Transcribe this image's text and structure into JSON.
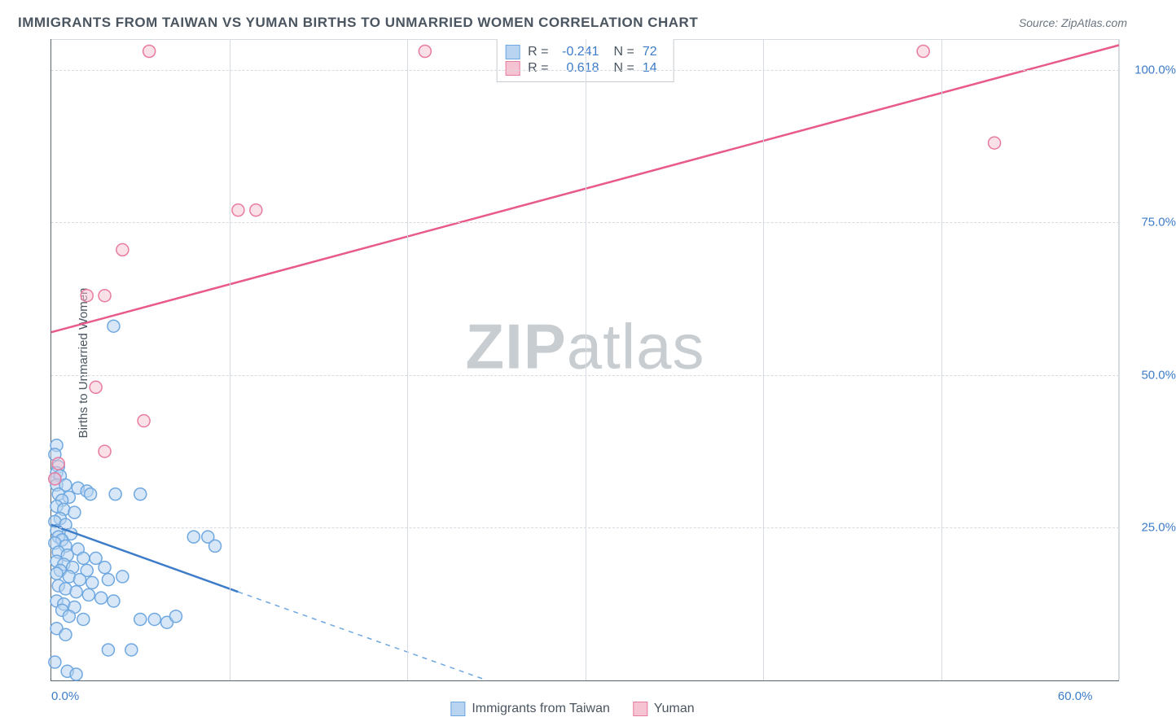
{
  "title": "IMMIGRANTS FROM TAIWAN VS YUMAN BIRTHS TO UNMARRIED WOMEN CORRELATION CHART",
  "source": "Source: ZipAtlas.com",
  "ylabel": "Births to Unmarried Women",
  "watermark_a": "ZIP",
  "watermark_b": "atlas",
  "chart": {
    "type": "scatter",
    "xlim": [
      0,
      60
    ],
    "ylim": [
      0,
      105
    ],
    "x_ticks": [
      0,
      10,
      20,
      30,
      40,
      50,
      60
    ],
    "x_tick_labels": [
      "0.0%",
      "",
      "",
      "",
      "",
      "",
      "60.0%"
    ],
    "y_ticks": [
      25,
      50,
      75,
      100
    ],
    "y_tick_labels": [
      "25.0%",
      "50.0%",
      "75.0%",
      "100.0%"
    ],
    "grid_color": "#d5dbe0",
    "axis_color": "#5a6570",
    "background_color": "#ffffff",
    "label_color": "#3d7cc9",
    "series": [
      {
        "name": "Immigrants from Taiwan",
        "key": "taiwan",
        "marker_fill": "#b8d4f0",
        "marker_stroke": "#6fa8e0",
        "marker_fill_opacity": 0.55,
        "line_color": "#3d7cc9",
        "line_width": 2.5,
        "dash_color": "#6fa8e0",
        "r": -0.241,
        "n": 72,
        "trend_solid": [
          [
            0,
            25.5
          ],
          [
            10.5,
            14.5
          ]
        ],
        "trend_dash": [
          [
            10.5,
            14.5
          ],
          [
            24.5,
            0
          ]
        ],
        "points": [
          [
            0.3,
            38.5
          ],
          [
            0.2,
            37.0
          ],
          [
            0.4,
            35.0
          ],
          [
            0.3,
            34.0
          ],
          [
            0.2,
            33.0
          ],
          [
            0.5,
            33.5
          ],
          [
            0.3,
            32.0
          ],
          [
            0.8,
            32.0
          ],
          [
            1.5,
            31.5
          ],
          [
            2.0,
            31.0
          ],
          [
            0.4,
            30.5
          ],
          [
            1.0,
            30.0
          ],
          [
            0.6,
            29.5
          ],
          [
            2.2,
            30.5
          ],
          [
            3.6,
            30.5
          ],
          [
            5.0,
            30.5
          ],
          [
            0.3,
            28.5
          ],
          [
            0.7,
            28.0
          ],
          [
            1.3,
            27.5
          ],
          [
            0.5,
            26.5
          ],
          [
            0.2,
            26.0
          ],
          [
            0.8,
            25.5
          ],
          [
            0.3,
            24.5
          ],
          [
            1.1,
            24.0
          ],
          [
            0.4,
            23.5
          ],
          [
            0.6,
            23.0
          ],
          [
            8.0,
            23.5
          ],
          [
            8.8,
            23.5
          ],
          [
            9.2,
            22.0
          ],
          [
            0.2,
            22.5
          ],
          [
            0.8,
            22.0
          ],
          [
            1.5,
            21.5
          ],
          [
            0.4,
            21.0
          ],
          [
            0.9,
            20.5
          ],
          [
            1.8,
            20.0
          ],
          [
            2.5,
            20.0
          ],
          [
            0.3,
            19.5
          ],
          [
            0.7,
            19.0
          ],
          [
            1.2,
            18.5
          ],
          [
            2.0,
            18.0
          ],
          [
            3.0,
            18.5
          ],
          [
            0.5,
            18.0
          ],
          [
            0.3,
            17.5
          ],
          [
            1.0,
            17.0
          ],
          [
            1.6,
            16.5
          ],
          [
            2.3,
            16.0
          ],
          [
            3.2,
            16.5
          ],
          [
            4.0,
            17.0
          ],
          [
            0.4,
            15.5
          ],
          [
            0.8,
            15.0
          ],
          [
            1.4,
            14.5
          ],
          [
            2.1,
            14.0
          ],
          [
            2.8,
            13.5
          ],
          [
            3.5,
            13.0
          ],
          [
            0.3,
            13.0
          ],
          [
            0.7,
            12.5
          ],
          [
            1.3,
            12.0
          ],
          [
            0.6,
            11.5
          ],
          [
            1.0,
            10.5
          ],
          [
            1.8,
            10.0
          ],
          [
            5.0,
            10.0
          ],
          [
            5.8,
            10.0
          ],
          [
            6.5,
            9.5
          ],
          [
            7.0,
            10.5
          ],
          [
            0.3,
            8.5
          ],
          [
            0.8,
            7.5
          ],
          [
            3.2,
            5.0
          ],
          [
            4.5,
            5.0
          ],
          [
            0.2,
            3.0
          ],
          [
            0.9,
            1.5
          ],
          [
            1.4,
            1.0
          ],
          [
            3.5,
            58.0
          ]
        ]
      },
      {
        "name": "Yuman",
        "key": "yuman",
        "marker_fill": "#f5c3d1",
        "marker_stroke": "#e87ba0",
        "marker_fill_opacity": 0.5,
        "line_color": "#e85a8a",
        "line_width": 2.5,
        "r": 0.618,
        "n": 14,
        "trend_solid": [
          [
            0,
            57.0
          ],
          [
            60,
            104.0
          ]
        ],
        "points": [
          [
            5.5,
            103.0
          ],
          [
            21.0,
            103.0
          ],
          [
            49.0,
            103.0
          ],
          [
            53.0,
            88.0
          ],
          [
            10.5,
            77.0
          ],
          [
            11.5,
            77.0
          ],
          [
            4.0,
            70.5
          ],
          [
            2.0,
            63.0
          ],
          [
            3.0,
            63.0
          ],
          [
            2.5,
            48.0
          ],
          [
            5.2,
            42.5
          ],
          [
            3.0,
            37.5
          ],
          [
            0.4,
            35.5
          ],
          [
            0.2,
            33.0
          ]
        ]
      }
    ]
  },
  "legend": {
    "items": [
      {
        "label": "Immigrants from Taiwan",
        "fill": "#b8d4f0",
        "stroke": "#6fa8e0"
      },
      {
        "label": "Yuman",
        "fill": "#f5c3d1",
        "stroke": "#e87ba0"
      }
    ]
  }
}
